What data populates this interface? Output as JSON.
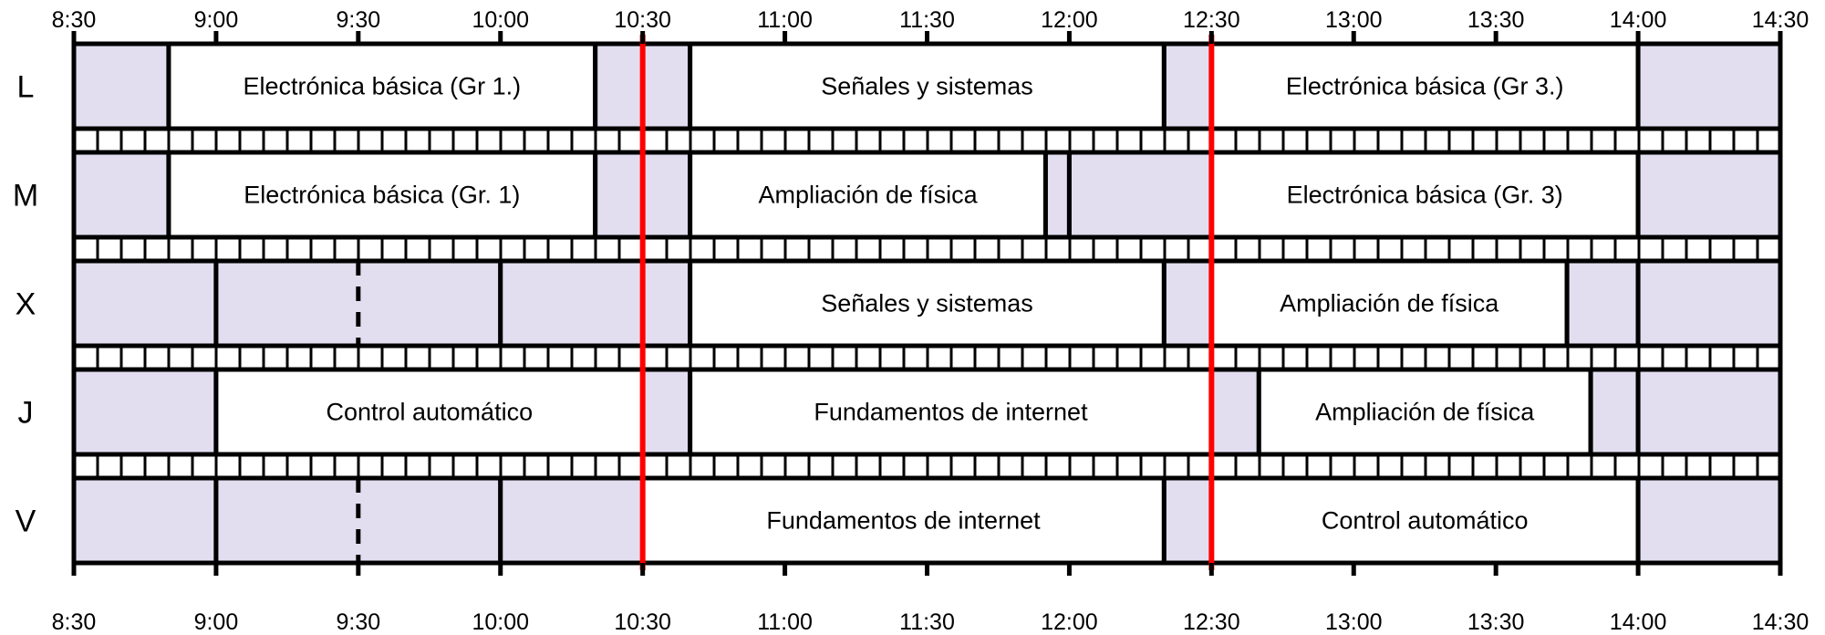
{
  "time_ticks": [
    "8:30",
    "9:00",
    "9:30",
    "10:00",
    "10:30",
    "11:00",
    "11:30",
    "12:00",
    "12:30",
    "13:00",
    "13:30",
    "14:00",
    "14:30"
  ],
  "days": [
    "L",
    "M",
    "X",
    "J",
    "V"
  ],
  "red_markers": [
    "10:30",
    "12:30"
  ],
  "colors": {
    "free_fill": "#e2def0",
    "class_fill": "#ffffff",
    "line": "#000000",
    "marker": "#ff0000",
    "strip_fill": "#ffffff"
  },
  "schedule": [
    {
      "day": "L",
      "blocks": [
        {
          "start": "8:30",
          "end": "8:50",
          "type": "free",
          "label": ""
        },
        {
          "start": "8:50",
          "end": "10:20",
          "type": "class",
          "label": "Electrónica básica (Gr 1.)"
        },
        {
          "start": "10:20",
          "end": "10:40",
          "type": "free",
          "label": ""
        },
        {
          "start": "10:40",
          "end": "12:20",
          "type": "class",
          "label": "Señales y sistemas"
        },
        {
          "start": "12:20",
          "end": "12:30",
          "type": "free",
          "label": ""
        },
        {
          "start": "12:30",
          "end": "14:00",
          "type": "class",
          "label": "Electrónica básica (Gr 3.)"
        },
        {
          "start": "14:00",
          "end": "14:30",
          "type": "free",
          "label": ""
        }
      ]
    },
    {
      "day": "M",
      "blocks": [
        {
          "start": "8:30",
          "end": "8:50",
          "type": "free",
          "label": ""
        },
        {
          "start": "8:50",
          "end": "10:20",
          "type": "class",
          "label": "Electrónica básica (Gr. 1)"
        },
        {
          "start": "10:20",
          "end": "10:40",
          "type": "free",
          "label": ""
        },
        {
          "start": "10:40",
          "end": "11:55",
          "type": "class",
          "label": "Ampliación de física"
        },
        {
          "start": "11:55",
          "end": "12:00",
          "type": "free",
          "label": ""
        },
        {
          "start": "12:00",
          "end": "12:30",
          "type": "free",
          "label": ""
        },
        {
          "start": "12:30",
          "end": "14:00",
          "type": "class",
          "label": "Electrónica básica (Gr. 3)"
        },
        {
          "start": "14:00",
          "end": "14:30",
          "type": "free",
          "label": ""
        }
      ]
    },
    {
      "day": "X",
      "blocks": [
        {
          "start": "8:30",
          "end": "9:00",
          "type": "free",
          "label": ""
        },
        {
          "start": "9:00",
          "end": "10:00",
          "type": "free",
          "label": ""
        },
        {
          "start": "10:00",
          "end": "10:40",
          "type": "free",
          "label": ""
        },
        {
          "start": "10:40",
          "end": "12:20",
          "type": "class",
          "label": "Señales y sistemas"
        },
        {
          "start": "12:20",
          "end": "12:30",
          "type": "free",
          "label": ""
        },
        {
          "start": "12:30",
          "end": "13:45",
          "type": "class",
          "label": "Ampliación de física"
        },
        {
          "start": "13:45",
          "end": "14:00",
          "type": "free",
          "label": ""
        },
        {
          "start": "14:00",
          "end": "14:30",
          "type": "free",
          "label": ""
        }
      ]
    },
    {
      "day": "J",
      "blocks": [
        {
          "start": "8:30",
          "end": "9:00",
          "type": "free",
          "label": ""
        },
        {
          "start": "9:00",
          "end": "10:30",
          "type": "class",
          "label": "Control automático"
        },
        {
          "start": "10:30",
          "end": "10:40",
          "type": "free",
          "label": ""
        },
        {
          "start": "10:40",
          "end": "12:30",
          "type": "class",
          "label": "Fundamentos de internet"
        },
        {
          "start": "12:30",
          "end": "12:40",
          "type": "free",
          "label": ""
        },
        {
          "start": "12:40",
          "end": "13:50",
          "type": "class",
          "label": "Ampliación de física"
        },
        {
          "start": "13:50",
          "end": "14:00",
          "type": "free",
          "label": ""
        },
        {
          "start": "14:00",
          "end": "14:30",
          "type": "free",
          "label": ""
        }
      ]
    },
    {
      "day": "V",
      "blocks": [
        {
          "start": "8:30",
          "end": "9:00",
          "type": "free",
          "label": ""
        },
        {
          "start": "9:00",
          "end": "10:00",
          "type": "free",
          "label": ""
        },
        {
          "start": "10:00",
          "end": "10:30",
          "type": "free",
          "label": ""
        },
        {
          "start": "10:30",
          "end": "12:20",
          "type": "class",
          "label": "Fundamentos de internet"
        },
        {
          "start": "12:20",
          "end": "12:30",
          "type": "free",
          "label": ""
        },
        {
          "start": "12:30",
          "end": "14:00",
          "type": "class",
          "label": "Control automático"
        },
        {
          "start": "14:00",
          "end": "14:30",
          "type": "free",
          "label": ""
        }
      ]
    }
  ]
}
